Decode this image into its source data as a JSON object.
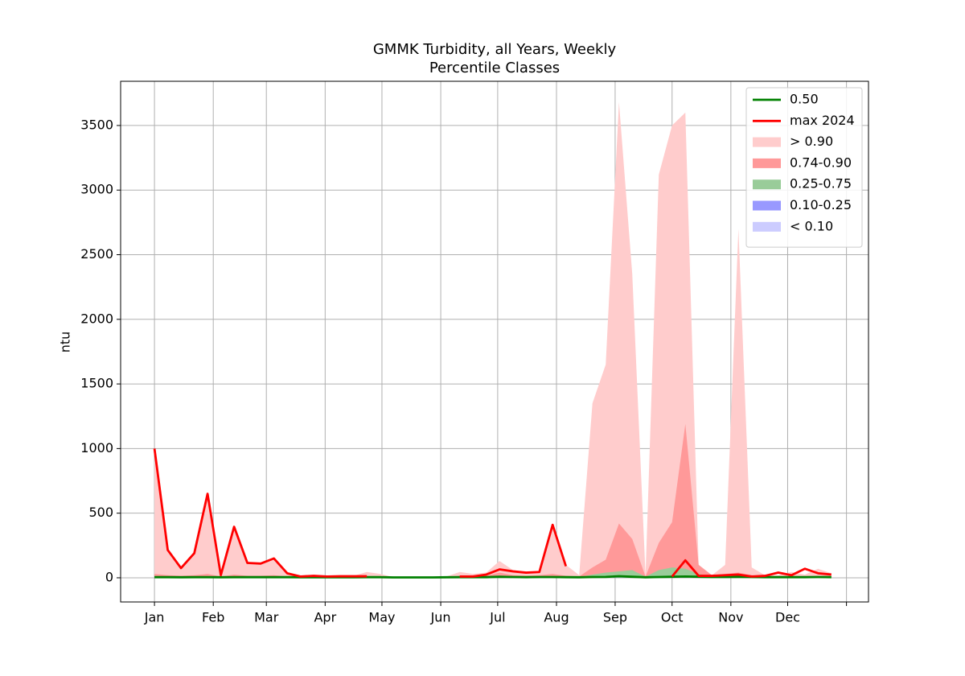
{
  "chart_data": {
    "type": "percentile_bands",
    "title": "GMMK Turbidity, all Years, Weekly",
    "subtitle": "Percentile Classes",
    "y_label": "ntu",
    "x": [
      0,
      1,
      2,
      3,
      4,
      5,
      6,
      7,
      8,
      9,
      10,
      11,
      12,
      13,
      14,
      15,
      16,
      17,
      18,
      19,
      20,
      21,
      22,
      23,
      24,
      25,
      26,
      27,
      28,
      29,
      30,
      31,
      32,
      33,
      34,
      35,
      36,
      37,
      38,
      39,
      40,
      41,
      42,
      43,
      44,
      45,
      46,
      47,
      48,
      49,
      50,
      51
    ],
    "xlim": [
      -2.55,
      53.8
    ],
    "xticks": [
      {
        "value": 0,
        "label": "Jan"
      },
      {
        "value": 4.43,
        "label": "Feb"
      },
      {
        "value": 8.43,
        "label": "Mar"
      },
      {
        "value": 12.86,
        "label": "Apr"
      },
      {
        "value": 17.14,
        "label": "May"
      },
      {
        "value": 21.57,
        "label": "Jun"
      },
      {
        "value": 25.86,
        "label": "Jul"
      },
      {
        "value": 30.29,
        "label": "Aug"
      },
      {
        "value": 34.71,
        "label": "Sep"
      },
      {
        "value": 39,
        "label": "Oct"
      },
      {
        "value": 43.43,
        "label": "Nov"
      },
      {
        "value": 47.71,
        "label": "Dec"
      },
      {
        "value": 52.14,
        "label": null
      }
    ],
    "ylim": [
      -187,
      3842
    ],
    "yticks": [
      0,
      500,
      1000,
      1500,
      2000,
      2500,
      3000,
      3500
    ],
    "grid": true,
    "legend": "upper right",
    "series": [
      {
        "name": "0.50",
        "color": "#008000",
        "values": [
          5,
          5,
          4,
          5,
          5,
          4,
          5,
          5,
          5,
          5,
          5,
          4,
          4,
          4,
          4,
          4,
          5,
          5,
          3,
          3,
          3,
          3,
          4,
          5,
          5,
          5,
          8,
          6,
          5,
          6,
          6,
          5,
          4,
          6,
          7,
          12,
          8,
          4,
          6,
          8,
          10,
          8,
          6,
          6,
          7,
          6,
          5,
          5,
          5,
          5,
          6,
          5
        ]
      },
      {
        "name": "max 2024",
        "color": "#ff0000",
        "values": [
          1000,
          215,
          75,
          190,
          650,
          20,
          395,
          115,
          110,
          150,
          35,
          10,
          15,
          10,
          12,
          12,
          12,
          null,
          null,
          null,
          null,
          null,
          null,
          10,
          10,
          25,
          65,
          50,
          40,
          45,
          410,
          90,
          null,
          null,
          null,
          null,
          null,
          null,
          null,
          10,
          135,
          15,
          15,
          20,
          25,
          10,
          15,
          40,
          20,
          70,
          35,
          25
        ]
      }
    ],
    "bands": [
      {
        "name": "> 0.90",
        "color": "#ffcccc",
        "upper": [
          1000,
          215,
          75,
          190,
          650,
          20,
          395,
          115,
          110,
          150,
          35,
          10,
          15,
          10,
          15,
          15,
          45,
          30,
          5,
          5,
          5,
          5,
          10,
          45,
          30,
          40,
          130,
          60,
          45,
          50,
          410,
          100,
          20,
          1350,
          1650,
          3680,
          2350,
          20,
          3120,
          3500,
          3600,
          100,
          20,
          100,
          2700,
          80,
          20,
          20,
          45,
          25,
          70,
          35
        ]
      },
      {
        "name": "0.74-0.90",
        "color": "#ff9999",
        "upper": [
          30,
          20,
          15,
          20,
          30,
          10,
          25,
          15,
          15,
          20,
          10,
          8,
          8,
          8,
          8,
          8,
          10,
          10,
          5,
          5,
          5,
          5,
          8,
          15,
          15,
          15,
          40,
          20,
          15,
          20,
          30,
          15,
          10,
          80,
          140,
          420,
          300,
          10,
          270,
          430,
          1190,
          100,
          20,
          30,
          40,
          20,
          10,
          10,
          15,
          10,
          15,
          12
        ]
      },
      {
        "name": "0.25-0.75",
        "color": "#99cc99",
        "upper": [
          10,
          8,
          8,
          8,
          10,
          6,
          8,
          7,
          7,
          8,
          6,
          5,
          5,
          5,
          5,
          5,
          6,
          6,
          4,
          4,
          4,
          4,
          5,
          8,
          8,
          8,
          15,
          10,
          8,
          10,
          12,
          8,
          6,
          25,
          40,
          50,
          60,
          8,
          60,
          80,
          70,
          30,
          10,
          12,
          15,
          10,
          7,
          7,
          8,
          7,
          8,
          8
        ]
      },
      {
        "name": "0.10-0.25",
        "color": "#9999ff",
        "upper": [
          3,
          3,
          2,
          3,
          3,
          2,
          3,
          3,
          3,
          3,
          3,
          2,
          2,
          2,
          2,
          2,
          3,
          3,
          2,
          2,
          2,
          2,
          2,
          3,
          3,
          3,
          4,
          3,
          3,
          3,
          3,
          3,
          2,
          3,
          3,
          5,
          4,
          2,
          3,
          4,
          4,
          4,
          3,
          3,
          3,
          3,
          3,
          3,
          3,
          3,
          3,
          3
        ]
      },
      {
        "name": "< 0.10",
        "color": "#ccccff",
        "upper": [
          2,
          2,
          1,
          2,
          2,
          1,
          2,
          2,
          2,
          2,
          2,
          1,
          1,
          1,
          1,
          1,
          2,
          2,
          1,
          1,
          1,
          1,
          1,
          2,
          2,
          2,
          2,
          2,
          2,
          2,
          2,
          2,
          1,
          2,
          2,
          3,
          2,
          1,
          2,
          2,
          2,
          2,
          2,
          2,
          2,
          2,
          2,
          2,
          2,
          2,
          2,
          2
        ]
      }
    ]
  }
}
